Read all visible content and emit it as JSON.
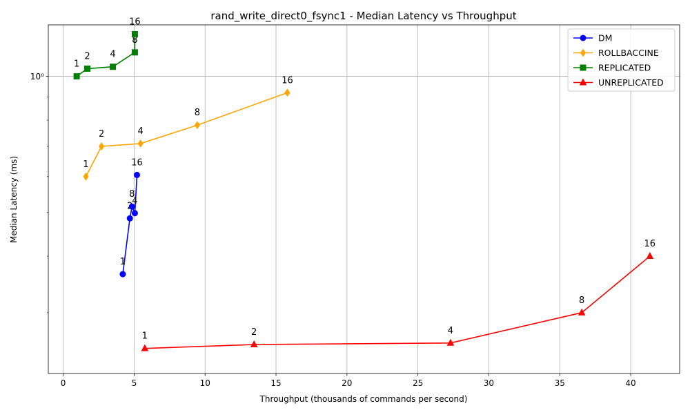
{
  "chart_data": {
    "type": "line",
    "title": "rand_write_direct0_fsync1 - Median Latency vs Throughput",
    "xlabel": "Throughput (thousands of commands per second)",
    "ylabel": "Median Latency (ms)",
    "xlim": [
      -1.05,
      43.45
    ],
    "ylim": [
      0.22,
      1.3
    ],
    "y_scale": "log",
    "x_ticks": [
      0,
      5,
      10,
      15,
      20,
      25,
      30,
      35,
      40
    ],
    "x_tick_labels": [
      "0",
      "5",
      "10",
      "15",
      "20",
      "25",
      "30",
      "35",
      "40"
    ],
    "y_major_ticks": [
      1.0
    ],
    "y_major_tick_labels": [
      "10⁰"
    ],
    "y_minor_ticks": [
      0.3,
      0.4,
      0.5,
      0.6,
      0.7,
      0.8,
      0.9
    ],
    "grid": true,
    "legend_position": "top-right",
    "series": [
      {
        "name": "DM",
        "color": "#0000ff",
        "marker": "circle",
        "x": [
          4.2,
          4.7,
          4.85,
          5.05,
          5.2
        ],
        "y": [
          0.365,
          0.485,
          0.515,
          0.498,
          0.605
        ],
        "labels": [
          "1",
          "2",
          "8",
          "4",
          "16"
        ]
      },
      {
        "name": "ROLLBACCINE",
        "color": "#ffa500",
        "marker": "diamond",
        "x": [
          1.6,
          2.7,
          5.45,
          9.45,
          15.8
        ],
        "y": [
          0.6,
          0.7,
          0.71,
          0.78,
          0.92
        ],
        "labels": [
          "1",
          "2",
          "4",
          "8",
          "16"
        ]
      },
      {
        "name": "REPLICATED",
        "color": "#008000",
        "marker": "square",
        "x": [
          0.95,
          1.7,
          3.5,
          5.05,
          5.05
        ],
        "y": [
          1.0,
          1.04,
          1.05,
          1.13,
          1.24
        ],
        "labels": [
          "1",
          "2",
          "4",
          "8",
          "16"
        ]
      },
      {
        "name": "UNREPLICATED",
        "color": "#ff0000",
        "marker": "triangle",
        "x": [
          5.75,
          13.45,
          27.3,
          36.55,
          41.35
        ],
        "y": [
          0.25,
          0.255,
          0.257,
          0.3,
          0.4
        ],
        "labels": [
          "1",
          "2",
          "4",
          "8",
          "16"
        ]
      }
    ]
  }
}
